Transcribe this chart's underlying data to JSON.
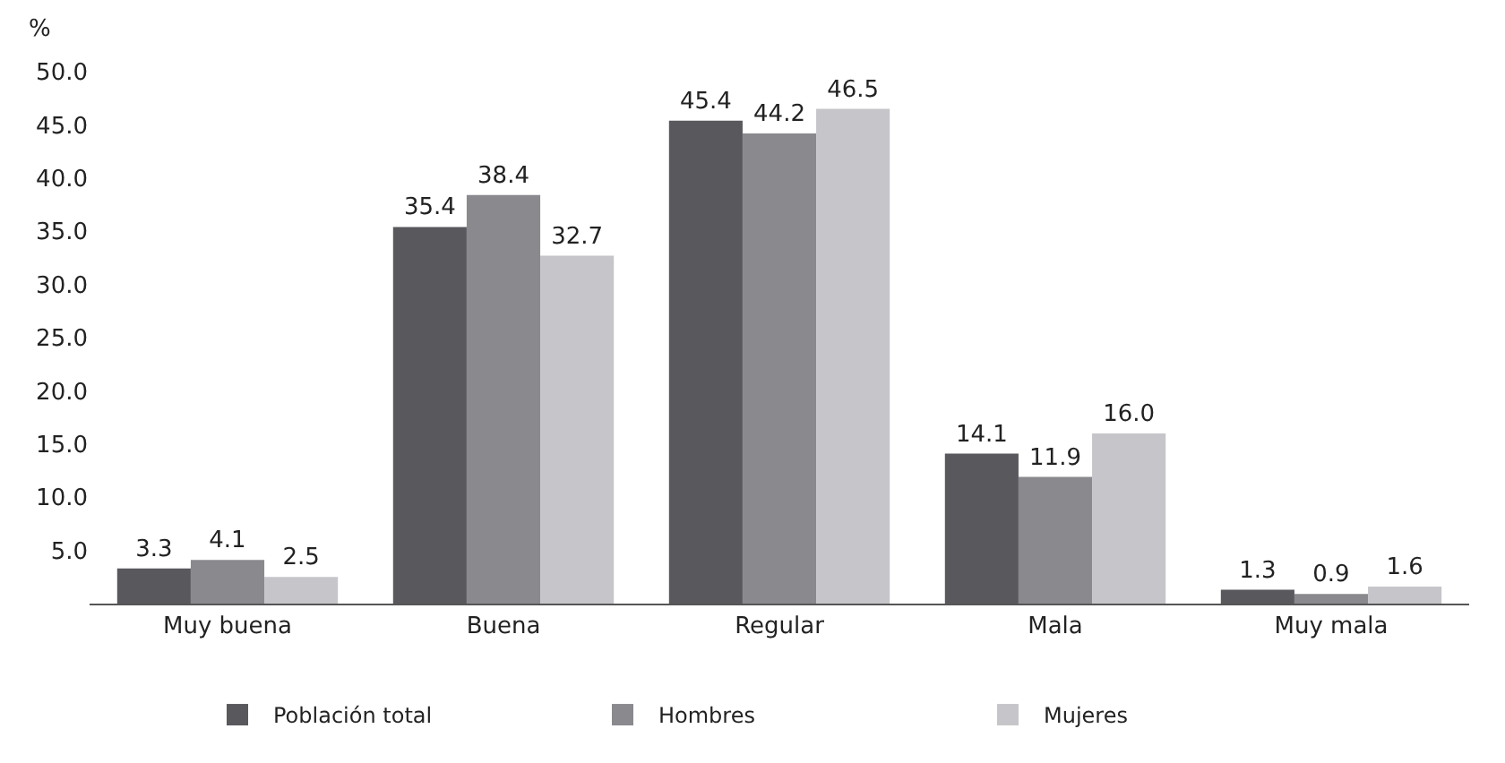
{
  "chart_data": {
    "type": "bar",
    "ylabel": "%",
    "categories": [
      "Muy buena",
      "Buena",
      "Regular",
      "Mala",
      "Muy mala"
    ],
    "series": [
      {
        "name": "Población total",
        "color": "#58585d",
        "values": [
          3.3,
          35.4,
          45.4,
          14.1,
          1.3
        ],
        "value_labels": [
          "3.3",
          "35.4",
          "45.4",
          "14.1",
          "1.3"
        ]
      },
      {
        "name": "Hombres",
        "color": "#8a898e",
        "values": [
          4.1,
          38.4,
          44.2,
          11.9,
          0.9
        ],
        "value_labels": [
          "4.1",
          "38.4",
          "44.2",
          "11.9",
          "0.9"
        ]
      },
      {
        "name": "Mujeres",
        "color": "#c6c6ca",
        "values": [
          2.5,
          32.7,
          46.5,
          16.0,
          1.6
        ],
        "value_labels": [
          "2.5",
          "32.7",
          "46.5",
          "16.0",
          "1.6"
        ]
      }
    ],
    "ylim": [
      0,
      50
    ],
    "yticks": [
      {
        "value": 5,
        "label": "5.0"
      },
      {
        "value": 10,
        "label": "10.0"
      },
      {
        "value": 15,
        "label": "15.0"
      },
      {
        "value": 20,
        "label": "20.0"
      },
      {
        "value": 25,
        "label": "25.0"
      },
      {
        "value": 30,
        "label": "30.0"
      },
      {
        "value": 35,
        "label": "35.0"
      },
      {
        "value": 40,
        "label": "40.0"
      },
      {
        "value": 45,
        "label": "45.0"
      },
      {
        "value": 50,
        "label": "50.0"
      }
    ],
    "legend": "bottom"
  }
}
